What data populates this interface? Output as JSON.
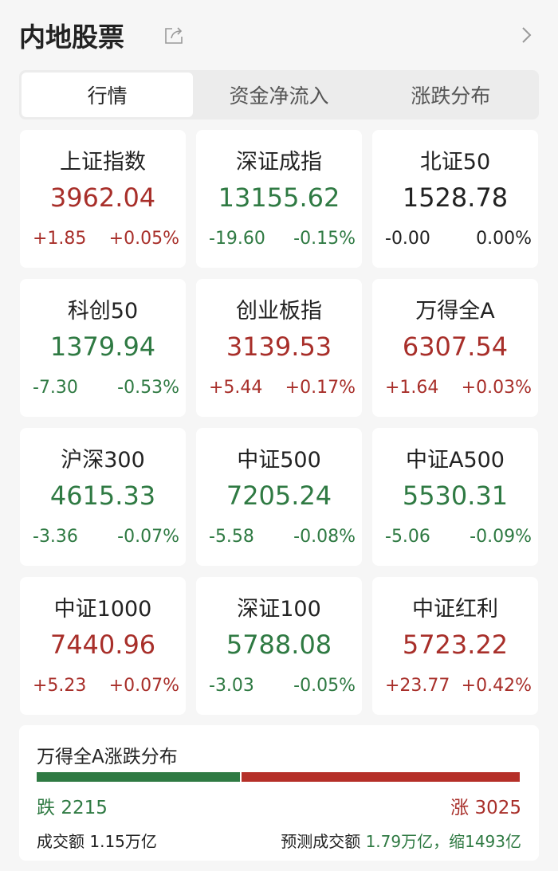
{
  "header": {
    "title": "内地股票",
    "share_icon": "share-icon",
    "more_icon": "chevron-right-icon"
  },
  "tabs": [
    {
      "label": "行情",
      "active": true
    },
    {
      "label": "资金净流入",
      "active": false
    },
    {
      "label": "涨跌分布",
      "active": false
    }
  ],
  "colors": {
    "up": "#a82f2a",
    "down": "#2f7a43"
  },
  "indices": [
    {
      "name": "上证指数",
      "value": "3962.04",
      "change": "+1.85",
      "pct": "+0.05%",
      "dir": "up"
    },
    {
      "name": "深证成指",
      "value": "13155.62",
      "change": "-19.60",
      "pct": "-0.15%",
      "dir": "down"
    },
    {
      "name": "北证50",
      "value": "1528.78",
      "change": "-0.00",
      "pct": "0.00%",
      "dir": "flat"
    },
    {
      "name": "科创50",
      "value": "1379.94",
      "change": "-7.30",
      "pct": "-0.53%",
      "dir": "down"
    },
    {
      "name": "创业板指",
      "value": "3139.53",
      "change": "+5.44",
      "pct": "+0.17%",
      "dir": "up"
    },
    {
      "name": "万得全A",
      "value": "6307.54",
      "change": "+1.64",
      "pct": "+0.03%",
      "dir": "up"
    },
    {
      "name": "沪深300",
      "value": "4615.33",
      "change": "-3.36",
      "pct": "-0.07%",
      "dir": "down"
    },
    {
      "name": "中证500",
      "value": "7205.24",
      "change": "-5.58",
      "pct": "-0.08%",
      "dir": "down"
    },
    {
      "name": "中证A500",
      "value": "5530.31",
      "change": "-5.06",
      "pct": "-0.09%",
      "dir": "down"
    },
    {
      "name": "中证1000",
      "value": "7440.96",
      "change": "+5.23",
      "pct": "+0.07%",
      "dir": "up"
    },
    {
      "name": "深证100",
      "value": "5788.08",
      "change": "-3.03",
      "pct": "-0.05%",
      "dir": "down"
    },
    {
      "name": "中证红利",
      "value": "5723.22",
      "change": "+23.77",
      "pct": "+0.42%",
      "dir": "up"
    }
  ],
  "distribution": {
    "title": "万得全A涨跌分布",
    "fall_label": "跌",
    "fall_count": 2215,
    "rise_label": "涨",
    "rise_count": 3025,
    "volume_label": "成交额",
    "volume": "1.15万亿",
    "forecast_label": "预测成交额",
    "forecast": "1.79万亿，缩1493亿"
  }
}
